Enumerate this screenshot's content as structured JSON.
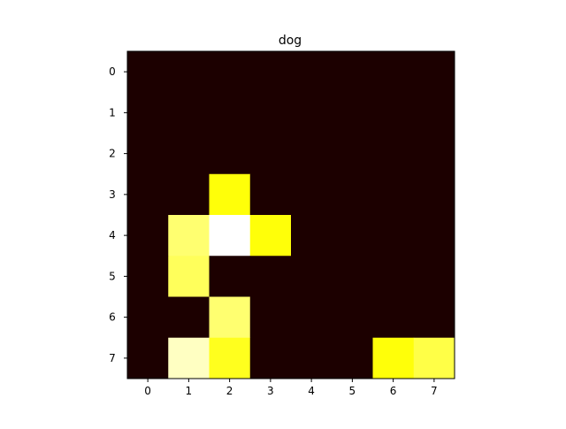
{
  "chart_data": {
    "type": "heatmap",
    "title": "dog",
    "xlabel": "",
    "ylabel": "",
    "x": [
      "0",
      "1",
      "2",
      "3",
      "4",
      "5",
      "6",
      "7"
    ],
    "y": [
      "0",
      "1",
      "2",
      "3",
      "4",
      "5",
      "6",
      "7"
    ],
    "colormap": "hot",
    "value_range": [
      0,
      1
    ],
    "grid": false,
    "values": [
      [
        0,
        0,
        0,
        0,
        0,
        0,
        0,
        0
      ],
      [
        0,
        0,
        0,
        0,
        0,
        0,
        0,
        0
      ],
      [
        0,
        0,
        0,
        0,
        0,
        0,
        0,
        0
      ],
      [
        0,
        0,
        0.76,
        0,
        0,
        0,
        0,
        0
      ],
      [
        0,
        0.86,
        1.0,
        0.76,
        0,
        0,
        0,
        0
      ],
      [
        0,
        0.84,
        0,
        0,
        0,
        0,
        0,
        0
      ],
      [
        0,
        0,
        0.86,
        0,
        0,
        0,
        0,
        0
      ],
      [
        0,
        0.94,
        0.78,
        0,
        0,
        0,
        0.76,
        0.82
      ]
    ]
  }
}
